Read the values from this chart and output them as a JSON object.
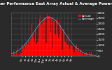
{
  "title": "Solar PV/Inverter Performance East Array Actual & Average Power Output",
  "title_fontsize": 4.0,
  "background_color": "#2a2a2a",
  "plot_bg_color": "#2a2a2a",
  "grid_color": "#ffffff",
  "bar_color": "#ff0000",
  "avg_line_color": "#00ccff",
  "legend_actual_color": "#ff0000",
  "legend_avg_color": "#00ccff",
  "legend_fontsize": 3.2,
  "ylabel_right": "Watts",
  "ytick_labels": [
    "0",
    "500",
    "1000",
    "1500",
    "2000",
    "2500",
    "3000",
    "3500",
    "4000"
  ],
  "ytick_values": [
    0,
    500,
    1000,
    1500,
    2000,
    2500,
    3000,
    3500,
    4000
  ],
  "tick_fontsize": 3.0,
  "xlabel_fontsize": 2.8,
  "n_points": 288,
  "peak_value": 3600,
  "ylim": [
    0,
    4000
  ],
  "xlim": [
    0,
    288
  ],
  "x_tick_labels": [
    "6a",
    "7a",
    "8a",
    "9a",
    "10a",
    "11a",
    "12p",
    "1p",
    "2p",
    "3p",
    "4p",
    "5p",
    "6p",
    "7p",
    "8p"
  ],
  "x_tick_positions": [
    36,
    48,
    60,
    72,
    84,
    96,
    108,
    120,
    132,
    144,
    156,
    168,
    180,
    192,
    204
  ]
}
